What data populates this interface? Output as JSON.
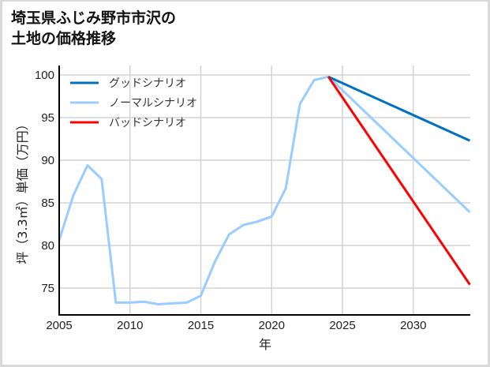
{
  "title_lines": [
    "埼玉県ふじみ野市市沢の",
    "土地の価格推移"
  ],
  "chart_data": {
    "type": "line",
    "title": "埼玉県ふじみ野市市沢の土地の価格推移",
    "xlabel": "年",
    "ylabel": "坪（3.3㎡）単価（万円）",
    "xlim": [
      2005,
      2034
    ],
    "ylim": [
      71.9,
      101.2
    ],
    "xticks": [
      2005,
      2010,
      2015,
      2020,
      2025,
      2030
    ],
    "yticks": [
      75,
      80,
      85,
      90,
      95,
      100
    ],
    "grid": true,
    "legend_position": "upper left",
    "series": [
      {
        "name": "グッドシナリオ",
        "color": "#0070c0",
        "x": [
          2024,
          2034
        ],
        "y": [
          99.8,
          92.3
        ]
      },
      {
        "name": "ノーマルシナリオ",
        "color": "#99ccff",
        "x": [
          2005,
          2006,
          2007,
          2008,
          2009,
          2010,
          2011,
          2012,
          2013,
          2014,
          2015,
          2016,
          2017,
          2018,
          2019,
          2020,
          2021,
          2022,
          2023,
          2024,
          2034
        ],
        "y": [
          80.6,
          85.9,
          89.4,
          87.8,
          73.3,
          73.3,
          73.4,
          73.1,
          73.2,
          73.3,
          74.1,
          78.1,
          81.3,
          82.4,
          82.8,
          83.4,
          86.7,
          96.6,
          99.4,
          99.8,
          83.9
        ]
      },
      {
        "name": "バッドシナリオ",
        "color": "#ff0000",
        "x": [
          2024,
          2034
        ],
        "y": [
          99.8,
          75.4
        ]
      }
    ]
  }
}
